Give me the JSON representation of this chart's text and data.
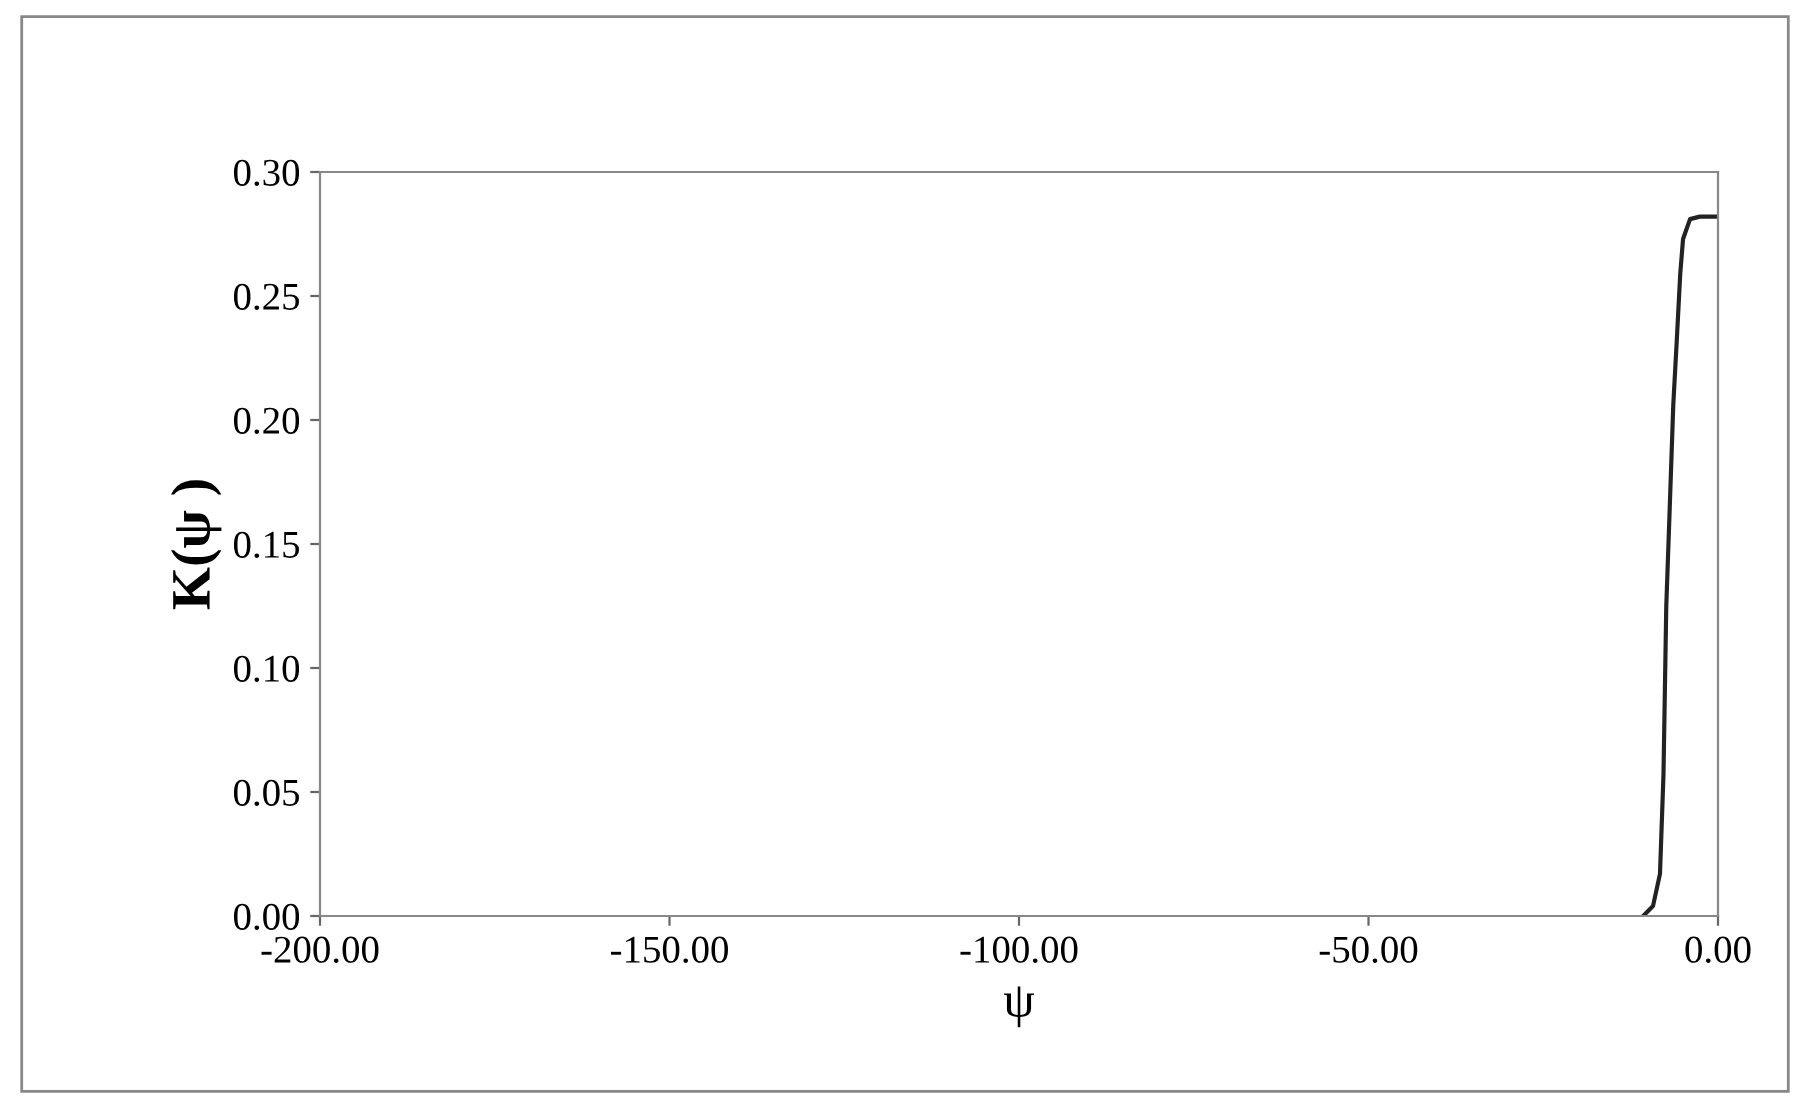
{
  "chart_data": {
    "type": "line",
    "xlabel": "ψ",
    "ylabel": "K(ψ )",
    "x": [
      -10.7,
      -9.3,
      -8.3,
      -7.8,
      -7.4,
      -6.9,
      -6.4,
      -5.9,
      -5.4,
      -5.0,
      -4.0,
      -2.6,
      -0.3
    ],
    "series": [
      {
        "color": "#222222",
        "values": [
          0.0,
          0.004,
          0.017,
          0.057,
          0.125,
          0.165,
          0.206,
          0.232,
          0.259,
          0.273,
          0.281,
          0.282,
          0.282
        ]
      }
    ],
    "xlim": [
      -200,
      0
    ],
    "xticks": [
      {
        "value": -200,
        "label": "-200.00"
      },
      {
        "value": -150,
        "label": "-150.00"
      },
      {
        "value": -100,
        "label": "-100.00"
      },
      {
        "value": -50,
        "label": "-50.00"
      },
      {
        "value": 0,
        "label": "0.00"
      }
    ],
    "ylim": [
      0,
      0.3
    ],
    "yticks": [
      {
        "value": 0,
        "label": "0.00"
      },
      {
        "value": 0.05,
        "label": "0.05"
      },
      {
        "value": 0.1,
        "label": "0.10"
      },
      {
        "value": 0.15,
        "label": "0.15"
      },
      {
        "value": 0.2,
        "label": "0.20"
      },
      {
        "value": 0.25,
        "label": "0.25"
      },
      {
        "value": 0.3,
        "label": "0.30"
      }
    ],
    "grid": false,
    "marker": "none",
    "line_style": "solid"
  }
}
